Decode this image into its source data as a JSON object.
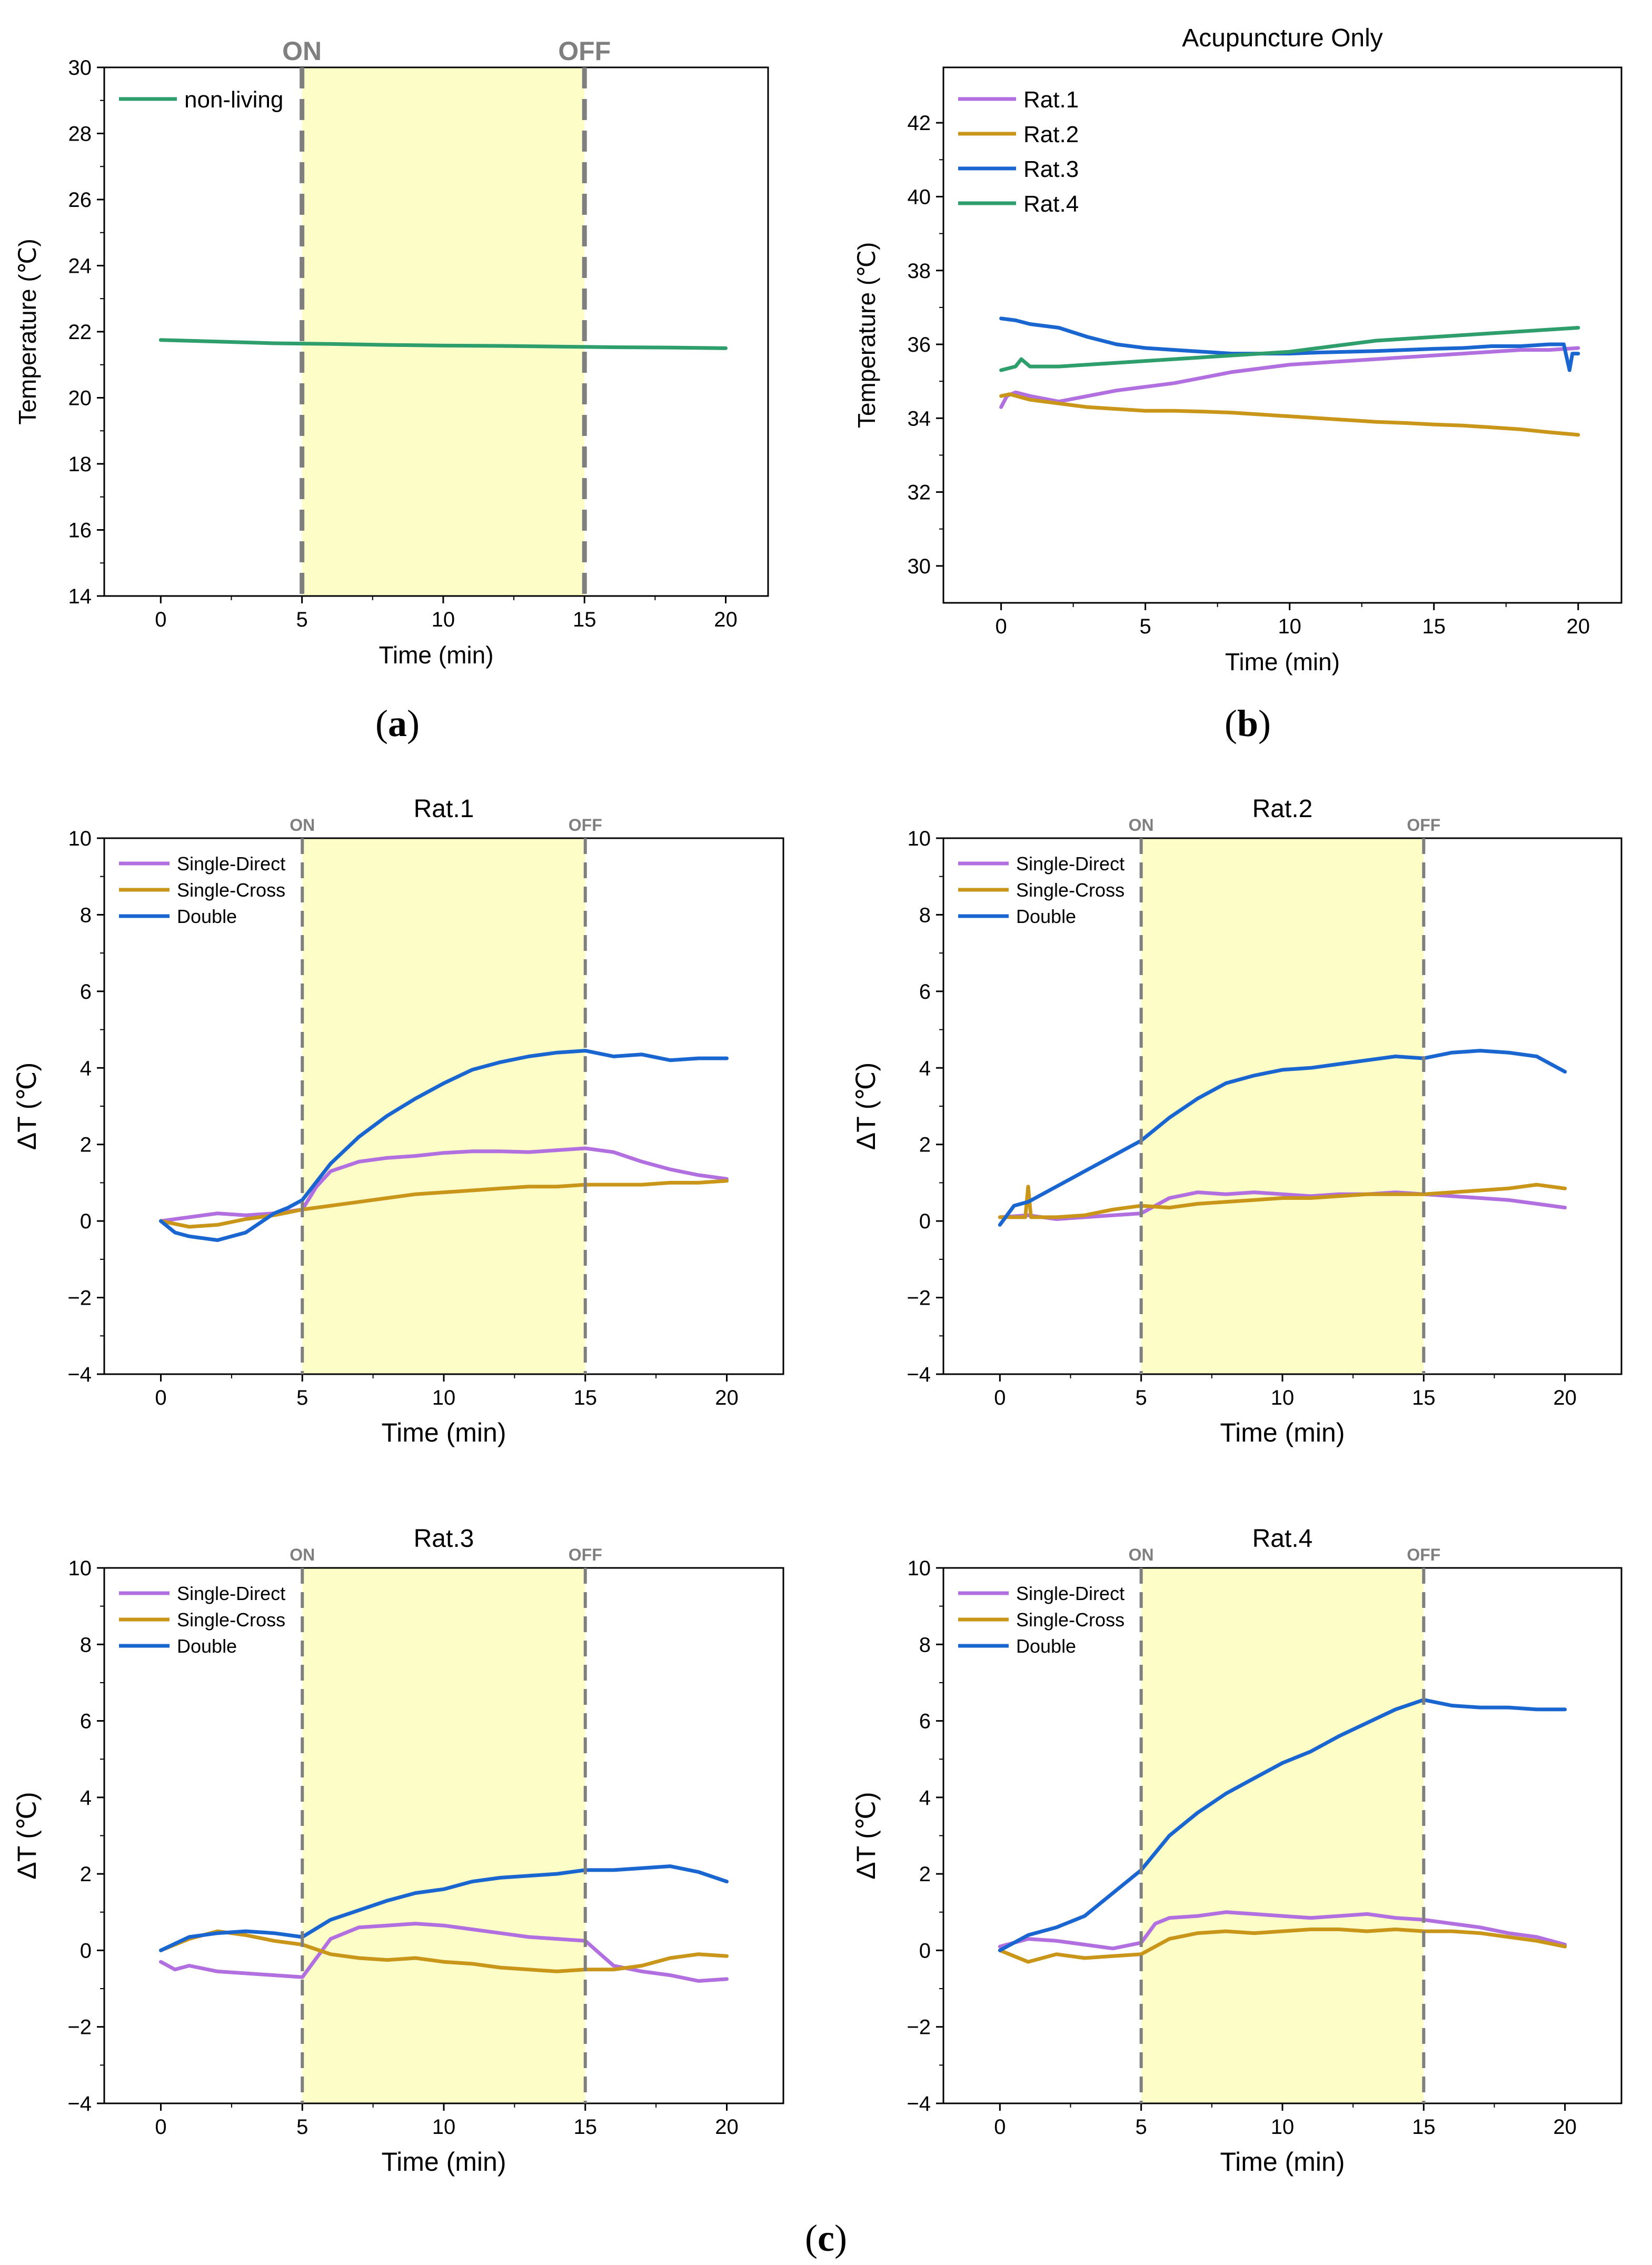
{
  "colors": {
    "green": "#2e9e6c",
    "purple": "#b26fe0",
    "gold": "#c9961a",
    "blue": "#1a66d0",
    "shade": "#fdfdc8",
    "marker": "#7f7f7f"
  },
  "panel_labels": {
    "a": "a",
    "b": "b",
    "c": "c"
  },
  "chart_data": [
    {
      "id": "a",
      "type": "line",
      "title": "",
      "xlabel": "Time (min)",
      "ylabel": "Temperature (℃)",
      "xlim": [
        -2,
        21.5
      ],
      "ylim": [
        14,
        30
      ],
      "xticks": [
        0,
        5,
        10,
        15,
        20
      ],
      "yticks": [
        14,
        16,
        18,
        20,
        22,
        24,
        26,
        28,
        30
      ],
      "markers": {
        "on_label": "ON",
        "off_label": "OFF",
        "on": 5,
        "off": 15,
        "style": "large"
      },
      "series": [
        {
          "name": "non-living",
          "color": "#2e9e6c",
          "x": [
            0,
            2,
            4,
            6,
            8,
            10,
            12,
            14,
            16,
            18,
            20
          ],
          "y": [
            21.75,
            21.7,
            21.65,
            21.63,
            21.6,
            21.58,
            21.57,
            21.55,
            21.53,
            21.52,
            21.5
          ]
        }
      ]
    },
    {
      "id": "b",
      "type": "line",
      "title": "Acupuncture Only",
      "xlabel": "Time (min)",
      "ylabel": "Temperature (℃)",
      "xlim": [
        -2,
        21.5
      ],
      "ylim": [
        29,
        43.5
      ],
      "xticks": [
        0,
        5,
        10,
        15,
        20
      ],
      "yticks": [
        30,
        32,
        34,
        36,
        38,
        40,
        42
      ],
      "markers": null,
      "series": [
        {
          "name": "Rat.1",
          "color": "#b26fe0",
          "x": [
            0,
            0.2,
            0.5,
            1,
            2,
            3,
            4,
            5,
            6,
            7,
            8,
            9,
            10,
            11,
            12,
            13,
            14,
            15,
            16,
            17,
            18,
            19,
            20
          ],
          "y": [
            34.3,
            34.6,
            34.7,
            34.6,
            34.45,
            34.6,
            34.75,
            34.85,
            34.95,
            35.1,
            35.25,
            35.35,
            35.45,
            35.5,
            35.55,
            35.6,
            35.65,
            35.7,
            35.75,
            35.8,
            35.85,
            35.85,
            35.9
          ]
        },
        {
          "name": "Rat.2",
          "color": "#c9961a",
          "x": [
            0,
            0.3,
            1,
            2,
            3,
            4,
            5,
            6,
            7,
            8,
            9,
            10,
            11,
            12,
            13,
            14,
            15,
            16,
            17,
            18,
            19,
            20
          ],
          "y": [
            34.6,
            34.65,
            34.5,
            34.4,
            34.3,
            34.25,
            34.2,
            34.2,
            34.18,
            34.15,
            34.1,
            34.05,
            34.0,
            33.95,
            33.9,
            33.87,
            33.83,
            33.8,
            33.75,
            33.7,
            33.62,
            33.55
          ]
        },
        {
          "name": "Rat.3",
          "color": "#1a66d0",
          "x": [
            0,
            0.5,
            1,
            2,
            3,
            4,
            5,
            6,
            7,
            8,
            9,
            10,
            11,
            12,
            13,
            14,
            15,
            16,
            17,
            18,
            19,
            19.5,
            19.7,
            19.8,
            20
          ],
          "y": [
            36.7,
            36.65,
            36.55,
            36.45,
            36.2,
            36.0,
            35.9,
            35.85,
            35.8,
            35.75,
            35.75,
            35.75,
            35.78,
            35.8,
            35.82,
            35.85,
            35.88,
            35.9,
            35.95,
            35.95,
            36.0,
            36.0,
            35.3,
            35.75,
            35.75
          ]
        },
        {
          "name": "Rat.4",
          "color": "#2e9e6c",
          "x": [
            0,
            0.5,
            0.7,
            1,
            2,
            3,
            4,
            5,
            6,
            7,
            8,
            9,
            10,
            11,
            12,
            13,
            14,
            15,
            16,
            17,
            18,
            19,
            20
          ],
          "y": [
            35.3,
            35.4,
            35.6,
            35.4,
            35.4,
            35.45,
            35.5,
            35.55,
            35.6,
            35.65,
            35.7,
            35.75,
            35.8,
            35.9,
            36.0,
            36.1,
            36.15,
            36.2,
            36.25,
            36.3,
            36.35,
            36.4,
            36.45
          ]
        }
      ]
    },
    {
      "id": "c1",
      "type": "line",
      "title": "Rat.1",
      "xlabel": "Time (min)",
      "ylabel": "ΔT (℃)",
      "xlim": [
        -2,
        22
      ],
      "ylim": [
        -4,
        10
      ],
      "xticks": [
        0,
        5,
        10,
        15,
        20
      ],
      "yticks": [
        -4,
        -2,
        0,
        2,
        4,
        6,
        8,
        10
      ],
      "markers": {
        "on_label": "ON",
        "off_label": "OFF",
        "on": 5,
        "off": 15,
        "style": "small"
      },
      "series": [
        {
          "name": "Single-Direct",
          "color": "#b26fe0",
          "x": [
            0,
            1,
            2,
            3,
            4,
            5,
            5.5,
            6,
            7,
            8,
            9,
            10,
            11,
            12,
            13,
            14,
            15,
            16,
            17,
            18,
            19,
            20
          ],
          "y": [
            0,
            0.1,
            0.2,
            0.15,
            0.2,
            0.3,
            0.9,
            1.3,
            1.55,
            1.65,
            1.7,
            1.78,
            1.82,
            1.82,
            1.8,
            1.85,
            1.9,
            1.8,
            1.55,
            1.35,
            1.2,
            1.1
          ]
        },
        {
          "name": "Single-Cross",
          "color": "#c9961a",
          "x": [
            0,
            1,
            2,
            3,
            4,
            5,
            6,
            7,
            8,
            9,
            10,
            11,
            12,
            13,
            14,
            15,
            16,
            17,
            18,
            19,
            20
          ],
          "y": [
            0,
            -0.15,
            -0.1,
            0.05,
            0.15,
            0.3,
            0.4,
            0.5,
            0.6,
            0.7,
            0.75,
            0.8,
            0.85,
            0.9,
            0.9,
            0.95,
            0.95,
            0.95,
            1.0,
            1.0,
            1.05
          ]
        },
        {
          "name": "Double",
          "color": "#1a66d0",
          "x": [
            0,
            0.5,
            1,
            2,
            3,
            4,
            4.5,
            5,
            6,
            7,
            8,
            9,
            10,
            11,
            12,
            13,
            14,
            15,
            16,
            17,
            18,
            19,
            20
          ],
          "y": [
            0,
            -0.3,
            -0.4,
            -0.5,
            -0.3,
            0.2,
            0.35,
            0.55,
            1.5,
            2.2,
            2.75,
            3.2,
            3.6,
            3.95,
            4.15,
            4.3,
            4.4,
            4.45,
            4.3,
            4.35,
            4.2,
            4.25,
            4.25
          ]
        }
      ]
    },
    {
      "id": "c2",
      "type": "line",
      "title": "Rat.2",
      "xlabel": "Time (min)",
      "ylabel": "ΔT (℃)",
      "xlim": [
        -2,
        22
      ],
      "ylim": [
        -4,
        10
      ],
      "xticks": [
        0,
        5,
        10,
        15,
        20
      ],
      "yticks": [
        -4,
        -2,
        0,
        2,
        4,
        6,
        8,
        10
      ],
      "markers": {
        "on_label": "ON",
        "off_label": "OFF",
        "on": 5,
        "off": 15,
        "style": "small"
      },
      "series": [
        {
          "name": "Single-Direct",
          "color": "#b26fe0",
          "x": [
            0,
            1,
            2,
            3,
            4,
            5,
            5.5,
            6,
            7,
            8,
            9,
            10,
            11,
            12,
            13,
            14,
            15,
            16,
            17,
            18,
            19,
            20
          ],
          "y": [
            0.1,
            0.15,
            0.05,
            0.1,
            0.15,
            0.2,
            0.4,
            0.6,
            0.75,
            0.7,
            0.75,
            0.7,
            0.65,
            0.7,
            0.7,
            0.75,
            0.7,
            0.65,
            0.6,
            0.55,
            0.45,
            0.35
          ]
        },
        {
          "name": "Single-Cross",
          "color": "#c9961a",
          "x": [
            0,
            0.9,
            1,
            1.1,
            2,
            3,
            4,
            5,
            6,
            7,
            8,
            9,
            10,
            11,
            12,
            13,
            14,
            15,
            16,
            17,
            18,
            19,
            20
          ],
          "y": [
            0.1,
            0.1,
            0.9,
            0.1,
            0.1,
            0.15,
            0.3,
            0.4,
            0.35,
            0.45,
            0.5,
            0.55,
            0.6,
            0.6,
            0.65,
            0.7,
            0.7,
            0.7,
            0.75,
            0.8,
            0.85,
            0.95,
            0.85
          ]
        },
        {
          "name": "Double",
          "color": "#1a66d0",
          "x": [
            0,
            0.5,
            1,
            2,
            3,
            4,
            5,
            6,
            7,
            8,
            9,
            10,
            11,
            12,
            13,
            14,
            15,
            16,
            17,
            18,
            19,
            20
          ],
          "y": [
            -0.1,
            0.4,
            0.5,
            0.9,
            1.3,
            1.7,
            2.1,
            2.7,
            3.2,
            3.6,
            3.8,
            3.95,
            4.0,
            4.1,
            4.2,
            4.3,
            4.25,
            4.4,
            4.45,
            4.4,
            4.3,
            3.9
          ]
        }
      ]
    },
    {
      "id": "c3",
      "type": "line",
      "title": "Rat.3",
      "xlabel": "Time (min)",
      "ylabel": "ΔT (℃)",
      "xlim": [
        -2,
        22
      ],
      "ylim": [
        -4,
        10
      ],
      "xticks": [
        0,
        5,
        10,
        15,
        20
      ],
      "yticks": [
        -4,
        -2,
        0,
        2,
        4,
        6,
        8,
        10
      ],
      "markers": {
        "on_label": "ON",
        "off_label": "OFF",
        "on": 5,
        "off": 15,
        "style": "small"
      },
      "series": [
        {
          "name": "Single-Direct",
          "color": "#b26fe0",
          "x": [
            0,
            0.5,
            1,
            2,
            3,
            4,
            5,
            6,
            7,
            8,
            9,
            10,
            11,
            12,
            13,
            14,
            15,
            16,
            17,
            18,
            19,
            20
          ],
          "y": [
            -0.3,
            -0.5,
            -0.4,
            -0.55,
            -0.6,
            -0.65,
            -0.7,
            0.3,
            0.6,
            0.65,
            0.7,
            0.65,
            0.55,
            0.45,
            0.35,
            0.3,
            0.25,
            -0.4,
            -0.55,
            -0.65,
            -0.8,
            -0.75
          ]
        },
        {
          "name": "Single-Cross",
          "color": "#c9961a",
          "x": [
            0,
            1,
            2,
            3,
            4,
            5,
            6,
            7,
            8,
            9,
            10,
            11,
            12,
            13,
            14,
            15,
            16,
            17,
            18,
            19,
            20
          ],
          "y": [
            0,
            0.3,
            0.5,
            0.4,
            0.25,
            0.15,
            -0.1,
            -0.2,
            -0.25,
            -0.2,
            -0.3,
            -0.35,
            -0.45,
            -0.5,
            -0.55,
            -0.5,
            -0.5,
            -0.4,
            -0.2,
            -0.1,
            -0.15
          ]
        },
        {
          "name": "Double",
          "color": "#1a66d0",
          "x": [
            0,
            1,
            2,
            3,
            4,
            5,
            6,
            7,
            8,
            9,
            10,
            11,
            12,
            13,
            14,
            15,
            16,
            17,
            18,
            19,
            20
          ],
          "y": [
            0,
            0.35,
            0.45,
            0.5,
            0.45,
            0.35,
            0.8,
            1.05,
            1.3,
            1.5,
            1.6,
            1.8,
            1.9,
            1.95,
            2.0,
            2.1,
            2.1,
            2.15,
            2.2,
            2.05,
            1.8
          ]
        }
      ]
    },
    {
      "id": "c4",
      "type": "line",
      "title": "Rat.4",
      "xlabel": "Time (min)",
      "ylabel": "ΔT (℃)",
      "xlim": [
        -2,
        22
      ],
      "ylim": [
        -4,
        10
      ],
      "xticks": [
        0,
        5,
        10,
        15,
        20
      ],
      "yticks": [
        -4,
        -2,
        0,
        2,
        4,
        6,
        8,
        10
      ],
      "markers": {
        "on_label": "ON",
        "off_label": "OFF",
        "on": 5,
        "off": 15,
        "style": "small"
      },
      "series": [
        {
          "name": "Single-Direct",
          "color": "#b26fe0",
          "x": [
            0,
            1,
            2,
            3,
            4,
            5,
            5.5,
            6,
            7,
            8,
            9,
            10,
            11,
            12,
            13,
            14,
            15,
            16,
            17,
            18,
            19,
            20
          ],
          "y": [
            0.1,
            0.3,
            0.25,
            0.15,
            0.05,
            0.2,
            0.7,
            0.85,
            0.9,
            1.0,
            0.95,
            0.9,
            0.85,
            0.9,
            0.95,
            0.85,
            0.8,
            0.7,
            0.6,
            0.45,
            0.35,
            0.15
          ]
        },
        {
          "name": "Single-Cross",
          "color": "#c9961a",
          "x": [
            0,
            1,
            2,
            3,
            4,
            5,
            6,
            7,
            8,
            9,
            10,
            11,
            12,
            13,
            14,
            15,
            16,
            17,
            18,
            19,
            20
          ],
          "y": [
            0,
            -0.3,
            -0.1,
            -0.2,
            -0.15,
            -0.1,
            0.3,
            0.45,
            0.5,
            0.45,
            0.5,
            0.55,
            0.55,
            0.5,
            0.55,
            0.5,
            0.5,
            0.45,
            0.35,
            0.25,
            0.1
          ]
        },
        {
          "name": "Double",
          "color": "#1a66d0",
          "x": [
            0,
            0.5,
            1,
            2,
            3,
            4,
            5,
            6,
            7,
            8,
            9,
            10,
            11,
            12,
            13,
            14,
            15,
            16,
            17,
            18,
            19,
            20
          ],
          "y": [
            0,
            0.2,
            0.4,
            0.6,
            0.9,
            1.5,
            2.1,
            3.0,
            3.6,
            4.1,
            4.5,
            4.9,
            5.2,
            5.6,
            5.95,
            6.3,
            6.55,
            6.4,
            6.35,
            6.35,
            6.3,
            6.3
          ]
        }
      ]
    }
  ]
}
